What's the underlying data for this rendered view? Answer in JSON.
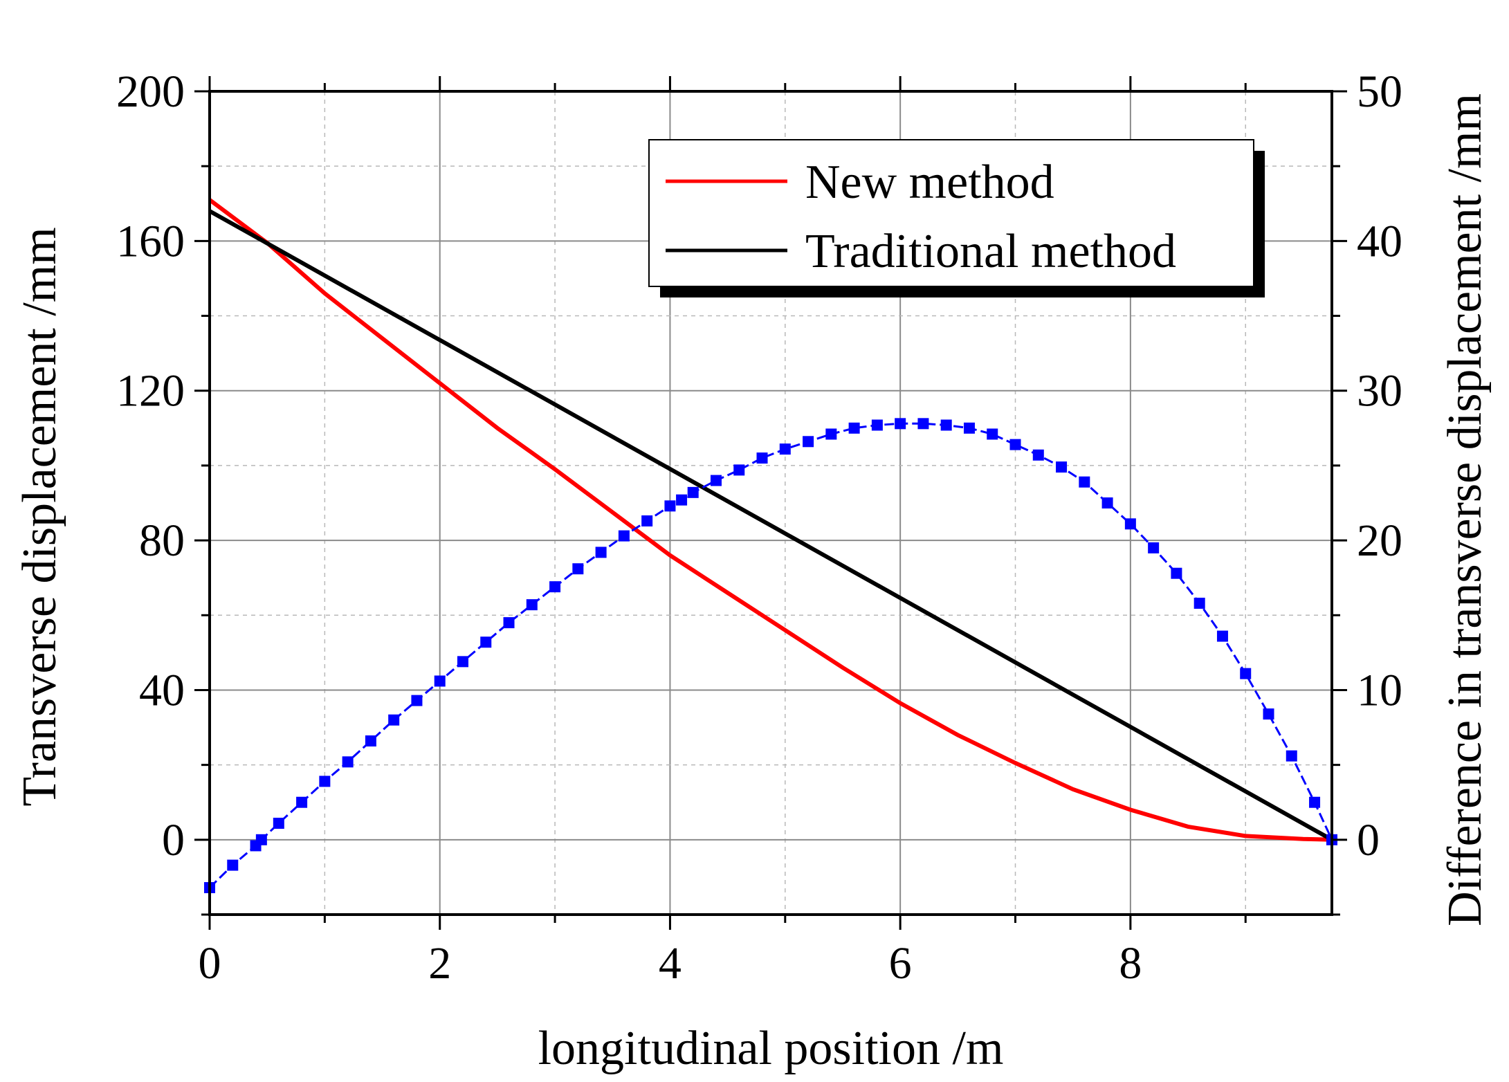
{
  "chart_data": {
    "type": "line",
    "title": "",
    "xlabel": "longitudinal position /m",
    "ylabel": "Transverse displacement /mm",
    "ylabel_right": "Difference in transverse displacement /mm",
    "xlim": [
      0,
      9.75
    ],
    "ylim": [
      -20,
      200
    ],
    "ylim_right": [
      -5,
      50
    ],
    "xticks": [
      0,
      2,
      4,
      6,
      8
    ],
    "yticks": [
      0,
      40,
      80,
      120,
      160,
      200
    ],
    "yticks_right": [
      0,
      10,
      20,
      30,
      40,
      50
    ],
    "grid": true,
    "legend_position": "top-right",
    "colors": {
      "new": "#ff0000",
      "traditional": "#000000",
      "difference": "#0000ff"
    },
    "series": [
      {
        "name": "New method",
        "axis": "left",
        "x": [
          0,
          0.5,
          1,
          1.5,
          2,
          2.5,
          3,
          3.5,
          4,
          4.5,
          5,
          5.5,
          6,
          6.5,
          7,
          7.5,
          8,
          8.5,
          9,
          9.5,
          9.75
        ],
        "values": [
          171,
          159.5,
          146,
          134,
          122,
          110,
          99,
          87.5,
          76,
          66,
          56,
          46,
          36.5,
          28,
          20.5,
          13.5,
          8,
          3.5,
          1,
          0.2,
          0
        ]
      },
      {
        "name": "Traditional method",
        "axis": "left",
        "x": [
          0,
          9.75
        ],
        "values": [
          168,
          0
        ]
      },
      {
        "name": "Difference",
        "axis": "right",
        "markers": true,
        "x": [
          0,
          0.2,
          0.4,
          0.45,
          0.6,
          0.8,
          1,
          1.2,
          1.4,
          1.6,
          1.8,
          2,
          2.2,
          2.4,
          2.6,
          2.8,
          3,
          3.2,
          3.4,
          3.6,
          3.8,
          4,
          4.1,
          4.2,
          4.4,
          4.6,
          4.8,
          5,
          5.2,
          5.4,
          5.6,
          5.8,
          6,
          6.2,
          6.4,
          6.6,
          6.8,
          7,
          7.2,
          7.4,
          7.6,
          7.8,
          8,
          8.2,
          8.4,
          8.6,
          8.8,
          9,
          9.2,
          9.4,
          9.6,
          9.75
        ],
        "values": [
          -3.2,
          -1.7,
          -0.4,
          0,
          1.1,
          2.5,
          3.9,
          5.2,
          6.6,
          8.0,
          9.3,
          10.6,
          11.9,
          13.2,
          14.5,
          15.7,
          16.9,
          18.1,
          19.2,
          20.3,
          21.3,
          22.3,
          22.7,
          23.2,
          24.0,
          24.7,
          25.5,
          26.1,
          26.6,
          27.1,
          27.5,
          27.7,
          27.8,
          27.8,
          27.7,
          27.5,
          27.1,
          26.4,
          25.7,
          24.9,
          23.9,
          22.5,
          21.1,
          19.5,
          17.8,
          15.8,
          13.6,
          11.1,
          8.4,
          5.6,
          2.5,
          0
        ]
      }
    ]
  }
}
